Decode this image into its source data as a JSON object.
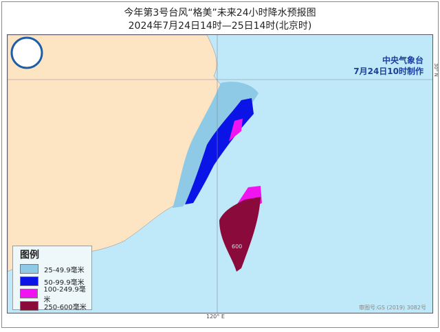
{
  "title": "今年第3号台风“格美”未来24小时降水预报图",
  "subtitle": "2024年7月24日14时—25日14时(北京时)",
  "agency": "中央气象台",
  "issued": "7月24日10时制作",
  "lat_label": "30° N",
  "lon_label": "120° E",
  "approval": "审图号:GS (2019) 3082号",
  "max_label": "600",
  "legend": {
    "title": "图例",
    "items": [
      {
        "label": "25-49.9毫米",
        "color": "#8ecae6"
      },
      {
        "label": "50-99.9毫米",
        "color": "#0a14e6"
      },
      {
        "label": "100-249.9毫米",
        "color": "#f014f0"
      },
      {
        "label": "250-600毫米",
        "color": "#8b0a3c"
      }
    ]
  },
  "colors": {
    "sea": "#bfe8f8",
    "land": "#fde5c4"
  }
}
